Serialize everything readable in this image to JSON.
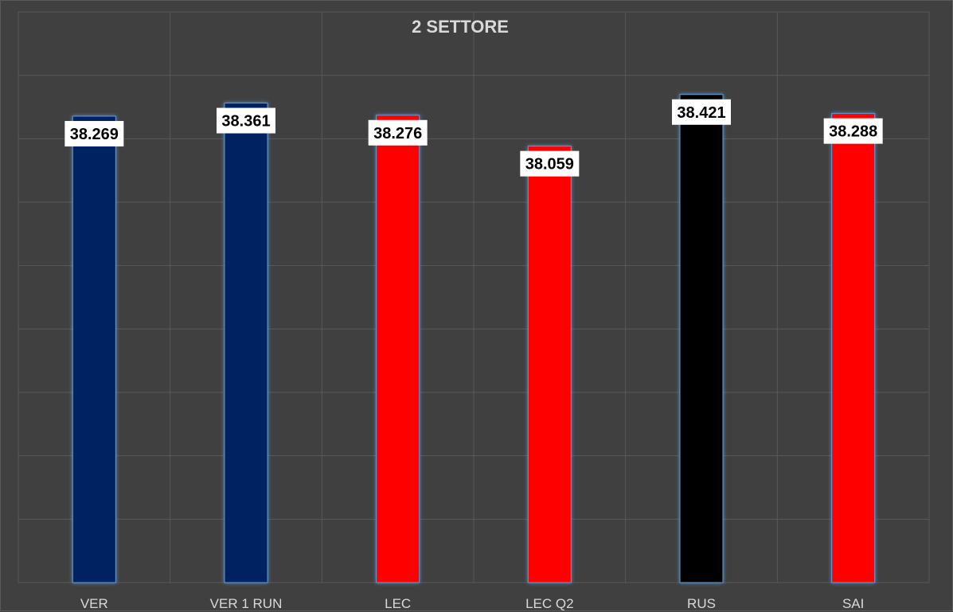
{
  "chart_data": {
    "type": "bar",
    "title": "2 SETTORE",
    "categories": [
      "VER",
      "VER 1 RUN",
      "LEC",
      "LEC Q2",
      "RUS",
      "SAI"
    ],
    "values": [
      38.269,
      38.361,
      38.276,
      38.059,
      38.421,
      38.288
    ],
    "value_labels": [
      "38.269",
      "38.361",
      "38.276",
      "38.059",
      "38.421",
      "38.288"
    ],
    "bar_colors": [
      "#002060",
      "#002060",
      "#ff0000",
      "#ff0000",
      "#000000",
      "#ff0000"
    ],
    "ylim": [
      35.0,
      39.0
    ],
    "grid": true,
    "legend": "none",
    "background_color": "#404040",
    "grid_color": "#595959",
    "text_color": "#d9d9d9",
    "bar_outline_color": "#5b9bd5"
  }
}
